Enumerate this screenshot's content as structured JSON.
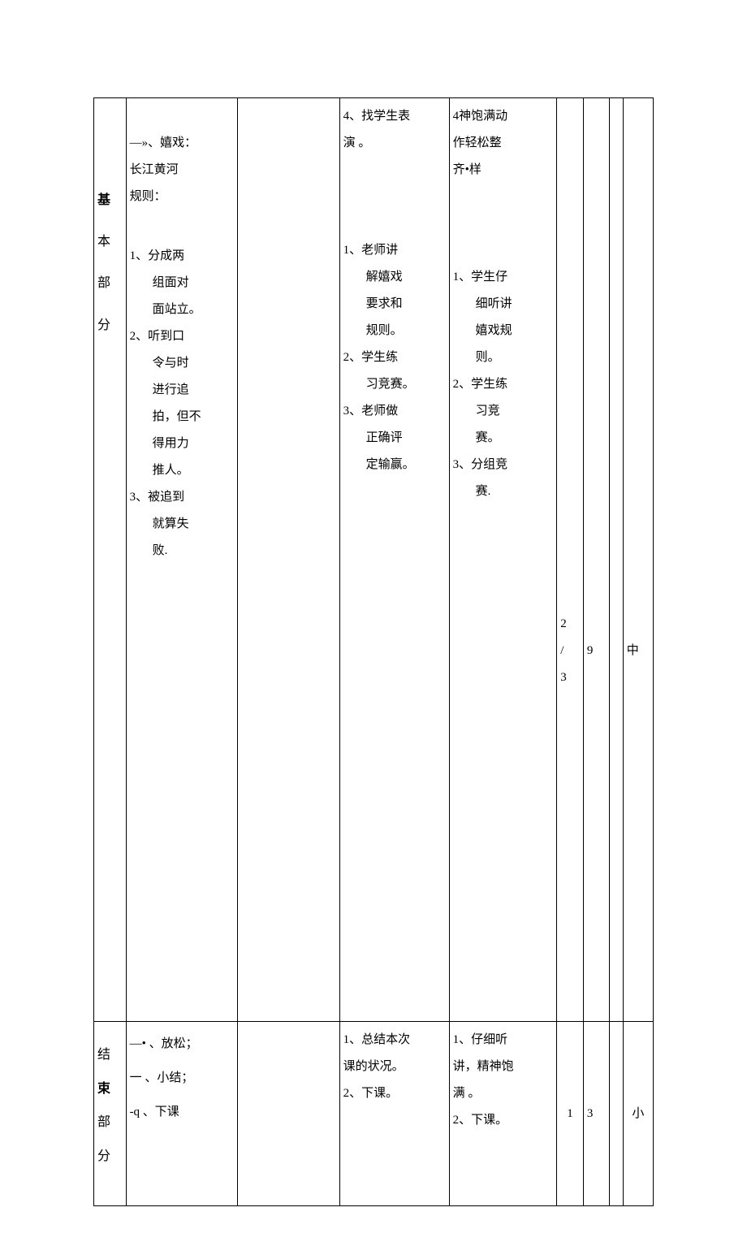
{
  "row1": {
    "section_label": {
      "c1": "基",
      "c2": "本",
      "c3": "部",
      "c4": "分"
    },
    "col2_content": {
      "line1": "—»、嬉戏：",
      "line2": "长江黄河",
      "line3": "规则：",
      "item1_head": "1、分成两",
      "item1_l2": "组面对",
      "item1_l3": "面站立。",
      "item2_head": "2、听到口",
      "item2_l2": "令与时",
      "item2_l3": "进行追",
      "item2_l4": "拍，但不",
      "item2_l5": "得用力",
      "item2_l6": "推人。",
      "item3_head": "3、被追到",
      "item3_l2": "就算失",
      "item3_l3": "败."
    },
    "col4_content": {
      "top_line1": "4、找学生表",
      "top_line2": "演 。",
      "item1_head": "1、老师讲",
      "item1_l2": "解嬉戏",
      "item1_l3": "要求和",
      "item1_l4": "规则。",
      "item2_head": "2、学生练",
      "item2_l2": "习竞赛。",
      "item3_head": "3、老师做",
      "item3_l2": "正确评",
      "item3_l3": "定输赢。"
    },
    "col5_content": {
      "top_line1": "4神饱满动",
      "top_line2": "作轻松整",
      "top_line3": " 齐•样",
      "item1_head": "1、学生仔",
      "item1_l2": "细听讲",
      "item1_l3": "嬉戏规",
      "item1_l4": "则。",
      "item2_head": "2、学生练",
      "item2_l2": "习竞",
      "item2_l3": "赛。",
      "item3_head": "3、分组竞",
      "item3_l2": "赛."
    },
    "col6_val_top": "2",
    "col6_val_mid": "/",
    "col6_val_bot": "3",
    "col7_val": "9",
    "col9_val": "中"
  },
  "row2": {
    "section_label": {
      "c1": "结",
      "c2": "束",
      "c3": "部",
      "c4": "分"
    },
    "col2_content": {
      "line1": "—• 、放松；",
      "line2": "一 、小结；",
      "line3": "-q 、下课"
    },
    "col4_content": {
      "line1": "1、总结本次",
      "line2": "课的状况。",
      "line3": "2、下课。"
    },
    "col5_content": {
      "line1": "1、仔细听",
      "line2": "讲，精神饱",
      "line3": "满 。",
      "line4": "2、下课。"
    },
    "col6_val": "1",
    "col7_val": "3",
    "col9_val": "小"
  }
}
